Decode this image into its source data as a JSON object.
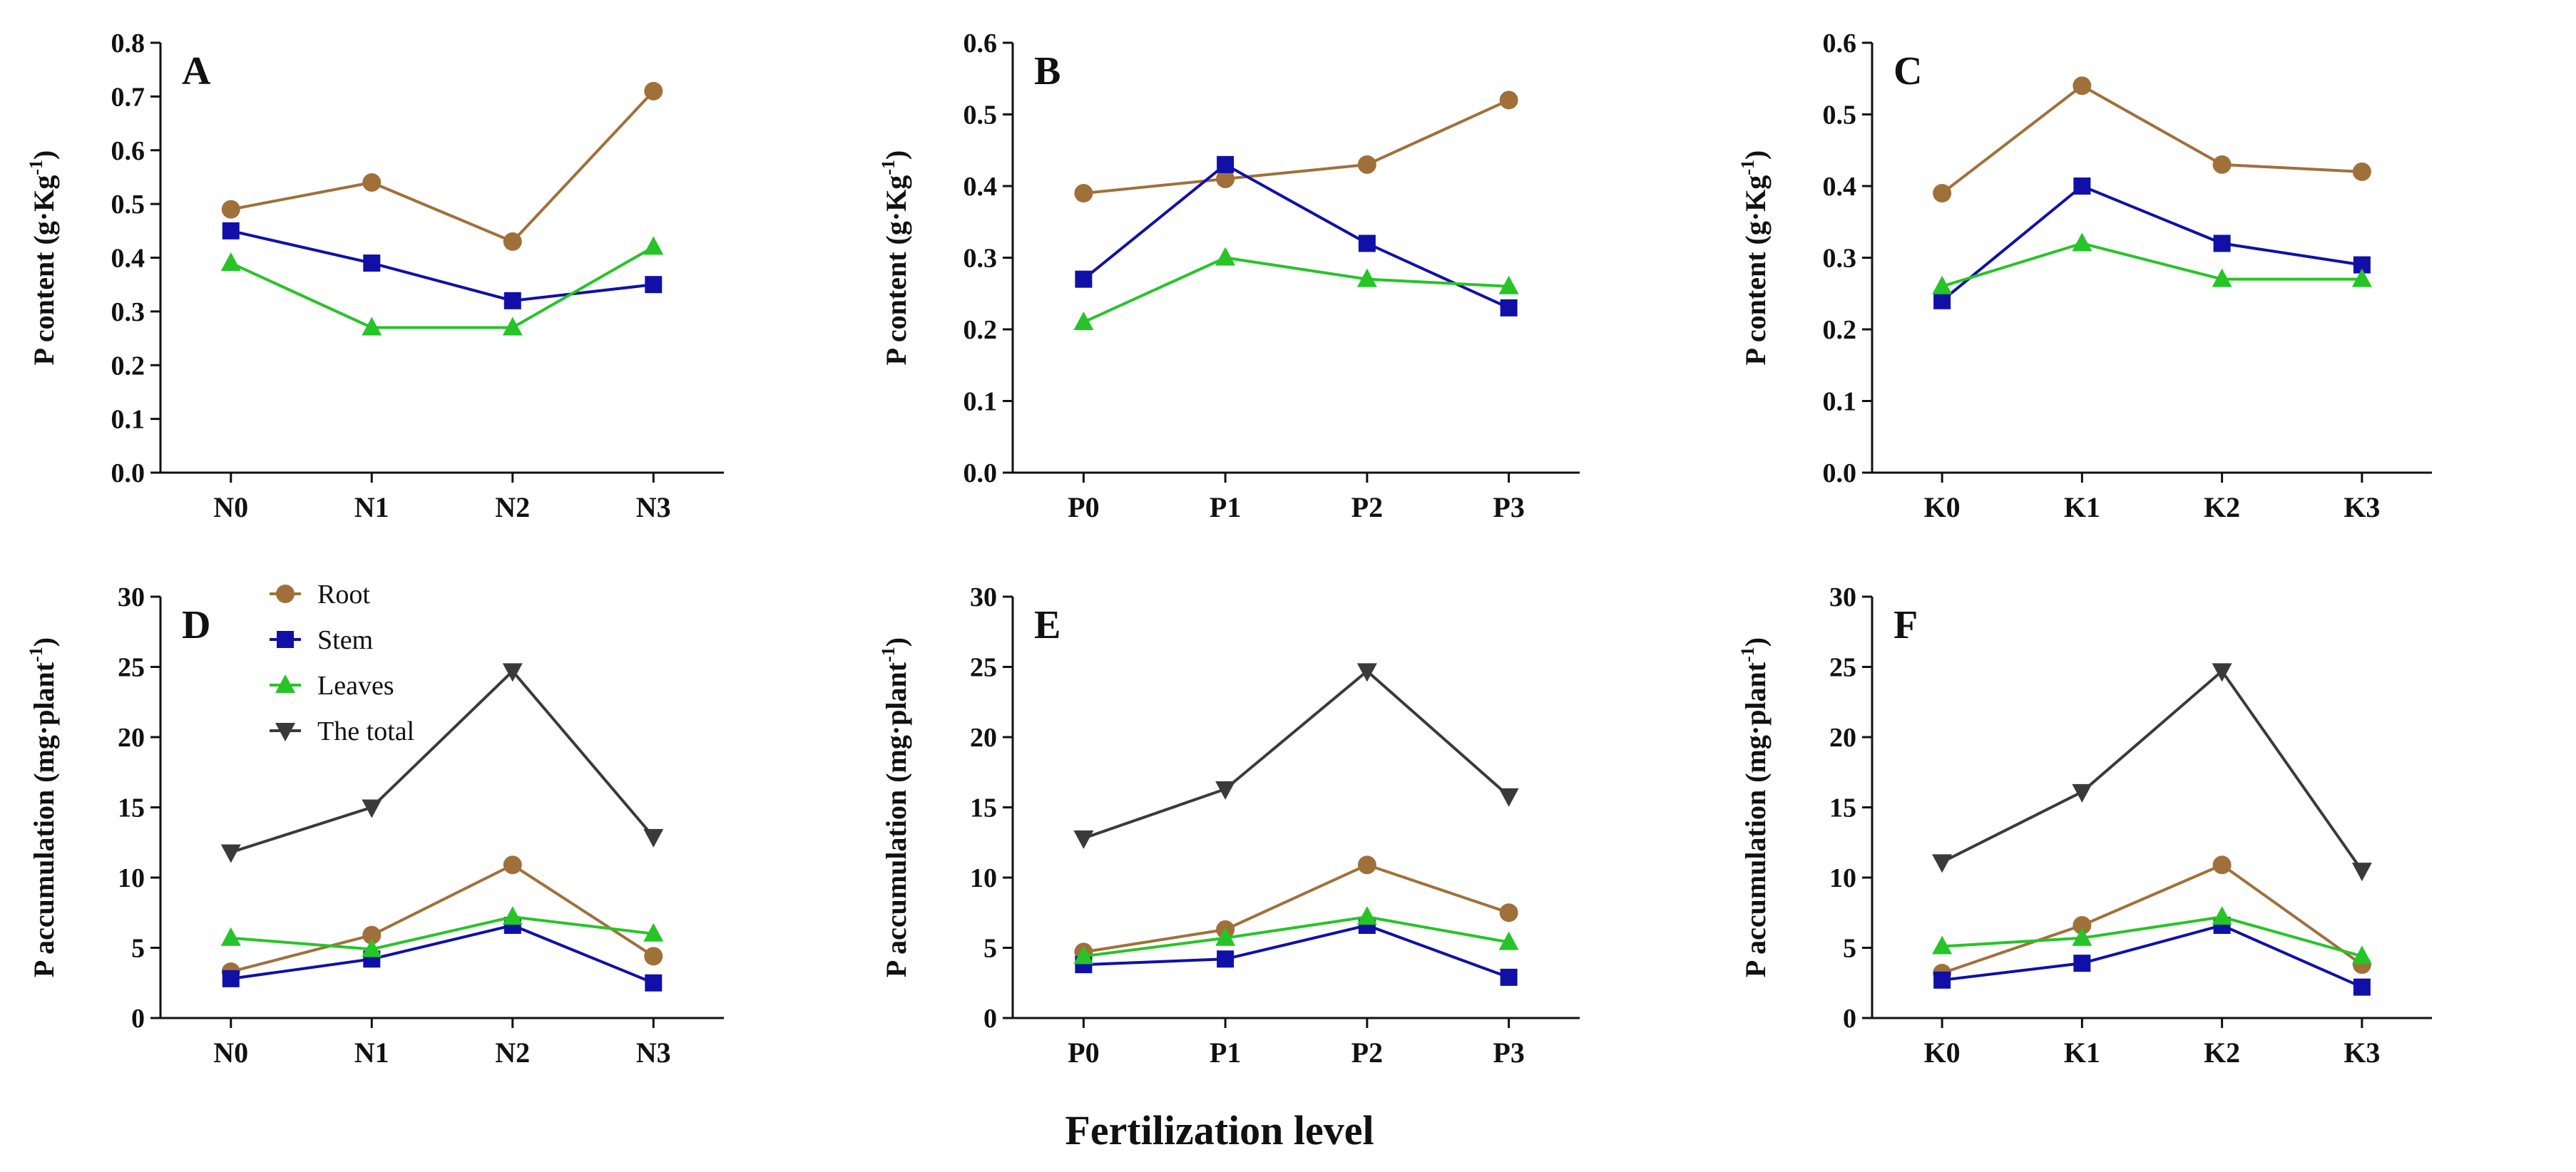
{
  "figure": {
    "x_title": "Fertilization level"
  },
  "legend": [
    {
      "name": "Root",
      "color": "#a0703a",
      "marker": "circle"
    },
    {
      "name": "Stem",
      "color": "#1010a8",
      "marker": "square"
    },
    {
      "name": "Leaves",
      "color": "#27c427",
      "marker": "triangle-up"
    },
    {
      "name": "The total",
      "color": "#3a3a3a",
      "marker": "triangle-down"
    }
  ],
  "chart_data": [
    {
      "panel": "A",
      "type": "line",
      "ylabel": "P content (g·Kg",
      "ylabel_sup": "-1",
      "ylabel_close": ")",
      "categories": [
        "N0",
        "N1",
        "N2",
        "N3"
      ],
      "ylim": [
        0,
        0.8
      ],
      "yticks": [
        "0.0",
        "0.1",
        "0.2",
        "0.3",
        "0.4",
        "0.5",
        "0.6",
        "0.7",
        "0.8"
      ],
      "series": [
        {
          "name": "Root",
          "values": [
            0.49,
            0.54,
            0.43,
            0.71
          ]
        },
        {
          "name": "Stem",
          "values": [
            0.45,
            0.39,
            0.32,
            0.35
          ]
        },
        {
          "name": "Leaves",
          "values": [
            0.39,
            0.27,
            0.27,
            0.42
          ]
        }
      ]
    },
    {
      "panel": "B",
      "type": "line",
      "ylabel": "P content (g·Kg",
      "ylabel_sup": "-1",
      "ylabel_close": ")",
      "categories": [
        "P0",
        "P1",
        "P2",
        "P3"
      ],
      "ylim": [
        0,
        0.6
      ],
      "yticks": [
        "0.0",
        "0.1",
        "0.2",
        "0.3",
        "0.4",
        "0.5",
        "0.6"
      ],
      "series": [
        {
          "name": "Root",
          "values": [
            0.39,
            0.41,
            0.43,
            0.52
          ]
        },
        {
          "name": "Stem",
          "values": [
            0.27,
            0.43,
            0.32,
            0.23
          ]
        },
        {
          "name": "Leaves",
          "values": [
            0.21,
            0.3,
            0.27,
            0.26
          ]
        }
      ]
    },
    {
      "panel": "C",
      "type": "line",
      "ylabel": "P content (g·Kg",
      "ylabel_sup": "-1",
      "ylabel_close": ")",
      "categories": [
        "K0",
        "K1",
        "K2",
        "K3"
      ],
      "ylim": [
        0,
        0.6
      ],
      "yticks": [
        "0.0",
        "0.1",
        "0.2",
        "0.3",
        "0.4",
        "0.5",
        "0.6"
      ],
      "series": [
        {
          "name": "Root",
          "values": [
            0.39,
            0.54,
            0.43,
            0.42
          ]
        },
        {
          "name": "Stem",
          "values": [
            0.24,
            0.4,
            0.32,
            0.29
          ]
        },
        {
          "name": "Leaves",
          "values": [
            0.26,
            0.32,
            0.27,
            0.27
          ]
        }
      ]
    },
    {
      "panel": "D",
      "type": "line",
      "ylabel": "P accumulation (mg·plant",
      "ylabel_sup": "-1",
      "ylabel_close": ")",
      "categories": [
        "N0",
        "N1",
        "N2",
        "N3"
      ],
      "ylim": [
        0,
        30
      ],
      "yticks": [
        "0",
        "5",
        "10",
        "15",
        "20",
        "25",
        "30"
      ],
      "series": [
        {
          "name": "Root",
          "values": [
            3.3,
            5.9,
            10.9,
            4.4
          ]
        },
        {
          "name": "Stem",
          "values": [
            2.8,
            4.2,
            6.6,
            2.5
          ]
        },
        {
          "name": "Leaves",
          "values": [
            5.7,
            4.9,
            7.2,
            6.0
          ]
        },
        {
          "name": "The total",
          "values": [
            11.8,
            15.0,
            24.7,
            12.9
          ]
        }
      ]
    },
    {
      "panel": "E",
      "type": "line",
      "ylabel": "P accumulation (mg·plant",
      "ylabel_sup": "-1",
      "ylabel_close": ")",
      "categories": [
        "P0",
        "P1",
        "P2",
        "P3"
      ],
      "ylim": [
        0,
        30
      ],
      "yticks": [
        "0",
        "5",
        "10",
        "15",
        "20",
        "25",
        "30"
      ],
      "series": [
        {
          "name": "Root",
          "values": [
            4.7,
            6.3,
            10.9,
            7.5
          ]
        },
        {
          "name": "Stem",
          "values": [
            3.8,
            4.2,
            6.6,
            2.9
          ]
        },
        {
          "name": "Leaves",
          "values": [
            4.4,
            5.7,
            7.2,
            5.4
          ]
        },
        {
          "name": "The total",
          "values": [
            12.8,
            16.3,
            24.7,
            15.8
          ]
        }
      ]
    },
    {
      "panel": "F",
      "type": "line",
      "ylabel": "P accumulation (mg·plant",
      "ylabel_sup": "-1",
      "ylabel_close": ")",
      "categories": [
        "K0",
        "K1",
        "K2",
        "K3"
      ],
      "ylim": [
        0,
        30
      ],
      "yticks": [
        "0",
        "5",
        "10",
        "15",
        "20",
        "25",
        "30"
      ],
      "series": [
        {
          "name": "Root",
          "values": [
            3.2,
            6.6,
            10.9,
            3.8
          ]
        },
        {
          "name": "Stem",
          "values": [
            2.7,
            3.9,
            6.6,
            2.2
          ]
        },
        {
          "name": "Leaves",
          "values": [
            5.1,
            5.7,
            7.2,
            4.4
          ]
        },
        {
          "name": "The total",
          "values": [
            11.1,
            16.1,
            24.7,
            10.5
          ]
        }
      ]
    }
  ]
}
